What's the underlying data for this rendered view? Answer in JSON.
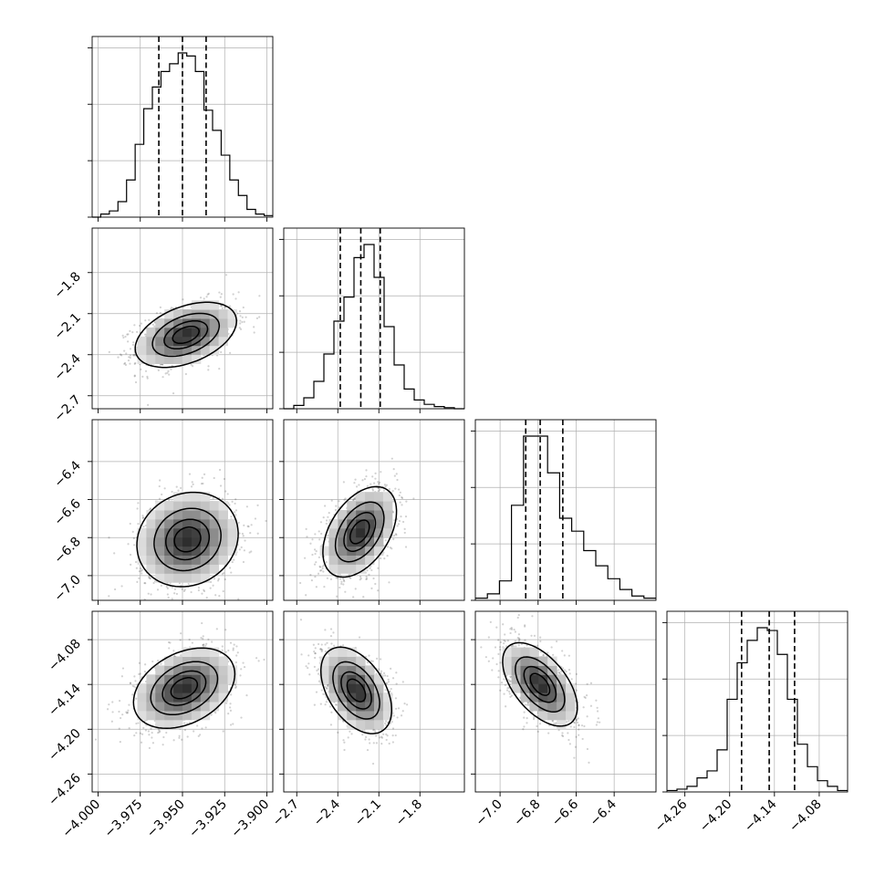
{
  "chart_data": {
    "type": "corner",
    "parameters": [
      {
        "ticks": [
          -4.0,
          -3.975,
          -3.95,
          -3.925,
          -3.9
        ],
        "tick_labels": [
          "−4.000",
          "−3.975",
          "−3.950",
          "−3.925",
          "−3.900"
        ],
        "range": [
          -4.0035,
          -3.8965
        ],
        "quantiles": [
          -3.964,
          -3.95,
          -3.936
        ],
        "hist_counts": [
          0,
          2,
          4,
          10,
          24,
          47,
          70,
          84,
          94,
          99,
          106,
          104,
          94,
          69,
          56,
          40,
          24,
          14,
          5,
          2,
          1
        ]
      },
      {
        "ticks": [
          -2.7,
          -2.4,
          -2.1,
          -1.8
        ],
        "tick_labels": [
          "−2.7",
          "−2.4",
          "−2.1",
          "−1.8"
        ],
        "range": [
          -2.795,
          -1.475
        ],
        "quantiles": [
          -2.382,
          -2.232,
          -2.09
        ],
        "hist_counts": [
          0,
          3,
          10,
          25,
          50,
          80,
          102,
          138,
          150,
          120,
          75,
          40,
          18,
          8,
          4,
          2,
          1,
          0
        ]
      },
      {
        "ticks": [
          -7.0,
          -6.8,
          -6.6,
          -6.4
        ],
        "tick_labels": [
          "−7.0",
          "−6.8",
          "−6.6",
          "−6.4"
        ],
        "range": [
          -7.13,
          -6.18
        ],
        "quantiles": [
          -6.865,
          -6.789,
          -6.67
        ],
        "hist_counts": [
          1,
          3,
          9,
          44,
          76,
          76,
          59,
          38,
          32,
          23,
          16,
          10,
          5,
          2,
          1
        ]
      },
      {
        "ticks": [
          -4.26,
          -4.2,
          -4.14,
          -4.08
        ],
        "tick_labels": [
          "−4.26",
          "−4.20",
          "−4.14",
          "−4.08"
        ],
        "range": [
          -4.284,
          -4.042
        ],
        "quantiles": [
          -4.184,
          -4.147,
          -4.113
        ],
        "hist_counts": [
          1,
          2,
          4,
          10,
          15,
          30,
          66,
          92,
          108,
          117,
          115,
          98,
          66,
          34,
          18,
          8,
          4,
          1
        ]
      }
    ],
    "histogram_y_ticks": 3,
    "scatter_color": "#000000",
    "density_colormap": [
      "#ffffff",
      "#000000"
    ],
    "contour_levels_sigma": [
      0.5,
      1.0,
      1.5,
      2.0
    ],
    "pair_stats": [
      {
        "x": 0,
        "y": 1,
        "mx": -3.948,
        "my": -2.255,
        "sx": 0.0145,
        "sy": 0.115,
        "rho": 0.42,
        "n": 1200
      },
      {
        "x": 0,
        "y": 2,
        "mx": -3.947,
        "my": -6.81,
        "sx": 0.0145,
        "sy": 0.12,
        "rho": 0.12,
        "n": 1200
      },
      {
        "x": 1,
        "y": 2,
        "mx": -2.24,
        "my": -6.77,
        "sx": 0.13,
        "sy": 0.115,
        "rho": 0.45,
        "n": 1200
      },
      {
        "x": 0,
        "y": 3,
        "mx": -3.949,
        "my": -4.145,
        "sx": 0.0145,
        "sy": 0.026,
        "rho": 0.35,
        "n": 1200
      },
      {
        "x": 1,
        "y": 3,
        "mx": -2.265,
        "my": -4.148,
        "sx": 0.125,
        "sy": 0.028,
        "rho": -0.45,
        "n": 1200
      },
      {
        "x": 2,
        "y": 3,
        "mx": -6.79,
        "my": -4.14,
        "sx": 0.095,
        "sy": 0.027,
        "rho": -0.55,
        "n": 1200
      }
    ],
    "grid": true
  }
}
